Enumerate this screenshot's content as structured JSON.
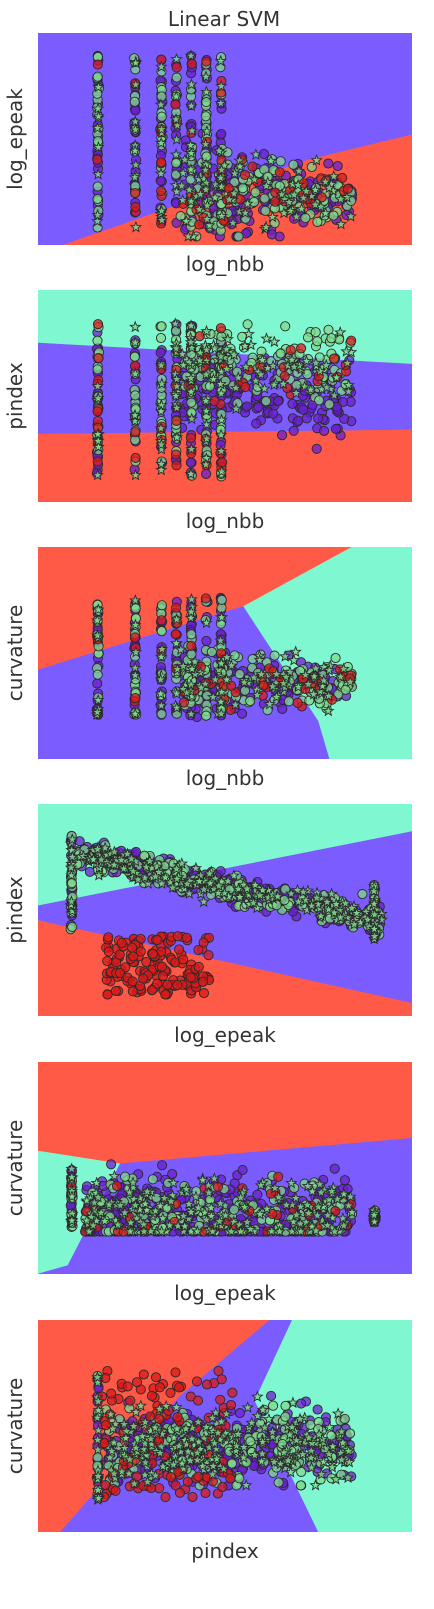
{
  "figure": {
    "title": "Linear SVM"
  },
  "colors": {
    "region_a": "#7b5cff",
    "region_b": "#ff5a47",
    "region_c": "#7ff7d0",
    "point_purple": "#6a1fd0",
    "point_red": "#d91a1a",
    "point_green": "#7fd98f",
    "edge": "#2a2a2a"
  },
  "chart_data": [
    {
      "type": "scatter",
      "title": "Linear SVM",
      "xlabel": "log_nbb",
      "ylabel": "log_epeak",
      "ticks": "none",
      "regions": [
        "region_a",
        "region_b"
      ],
      "series": [
        {
          "color": "point_purple",
          "marker": "circle",
          "count": 260
        },
        {
          "color": "point_green",
          "marker": "circle",
          "count": 220
        },
        {
          "color": "point_red",
          "marker": "circle",
          "count": 60
        },
        {
          "color": "point_green",
          "marker": "star",
          "count": 140
        }
      ]
    },
    {
      "type": "scatter",
      "xlabel": "log_nbb",
      "ylabel": "pindex",
      "ticks": "none",
      "regions": [
        "region_c",
        "region_a",
        "region_b"
      ],
      "series": [
        {
          "color": "point_purple",
          "marker": "circle",
          "count": 260
        },
        {
          "color": "point_green",
          "marker": "circle",
          "count": 220
        },
        {
          "color": "point_red",
          "marker": "circle",
          "count": 60
        },
        {
          "color": "point_green",
          "marker": "star",
          "count": 140
        }
      ]
    },
    {
      "type": "scatter",
      "xlabel": "log_nbb",
      "ylabel": "curvature",
      "ticks": "none",
      "regions": [
        "region_b",
        "region_a",
        "region_c"
      ],
      "series": [
        {
          "color": "point_purple",
          "marker": "circle",
          "count": 240
        },
        {
          "color": "point_green",
          "marker": "circle",
          "count": 200
        },
        {
          "color": "point_red",
          "marker": "circle",
          "count": 50
        },
        {
          "color": "point_green",
          "marker": "star",
          "count": 120
        }
      ]
    },
    {
      "type": "scatter",
      "xlabel": "log_epeak",
      "ylabel": "pindex",
      "ticks": "none",
      "regions": [
        "region_c",
        "region_a",
        "region_b"
      ],
      "series": [
        {
          "color": "point_purple",
          "marker": "circle",
          "count": 300
        },
        {
          "color": "point_green",
          "marker": "circle",
          "count": 200
        },
        {
          "color": "point_red",
          "marker": "circle",
          "count": 160
        },
        {
          "color": "point_green",
          "marker": "star",
          "count": 220
        }
      ]
    },
    {
      "type": "scatter",
      "xlabel": "log_epeak",
      "ylabel": "curvature",
      "ticks": "none",
      "regions": [
        "region_b",
        "region_c",
        "region_a"
      ],
      "series": [
        {
          "color": "point_purple",
          "marker": "circle",
          "count": 320
        },
        {
          "color": "point_green",
          "marker": "circle",
          "count": 180
        },
        {
          "color": "point_red",
          "marker": "circle",
          "count": 40
        },
        {
          "color": "point_green",
          "marker": "star",
          "count": 220
        }
      ]
    },
    {
      "type": "scatter",
      "xlabel": "pindex",
      "ylabel": "curvature",
      "ticks": "none",
      "regions": [
        "region_b",
        "region_a",
        "region_c"
      ],
      "series": [
        {
          "color": "point_purple",
          "marker": "circle",
          "count": 320
        },
        {
          "color": "point_green",
          "marker": "circle",
          "count": 200
        },
        {
          "color": "point_red",
          "marker": "circle",
          "count": 120
        },
        {
          "color": "point_green",
          "marker": "star",
          "count": 240
        }
      ]
    }
  ]
}
